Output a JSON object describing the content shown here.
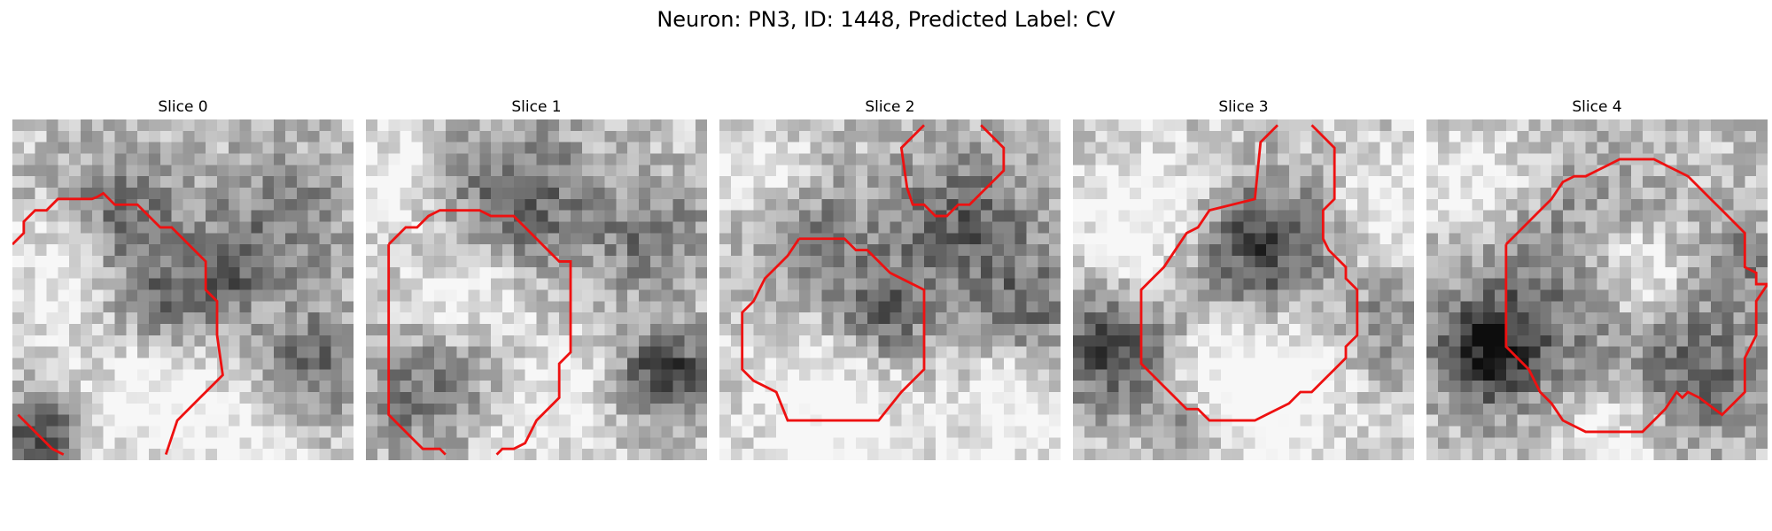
{
  "figure": {
    "title": "Neuron: PN3, ID: 1448, Predicted Label: CV"
  },
  "panels": [
    {
      "title": "Slice 0"
    },
    {
      "title": "Slice 1"
    },
    {
      "title": "Slice 2"
    },
    {
      "title": "Slice 3"
    },
    {
      "title": "Slice 4"
    }
  ],
  "style": {
    "contour_color": "#ee1111",
    "colormap": "grayscale"
  }
}
